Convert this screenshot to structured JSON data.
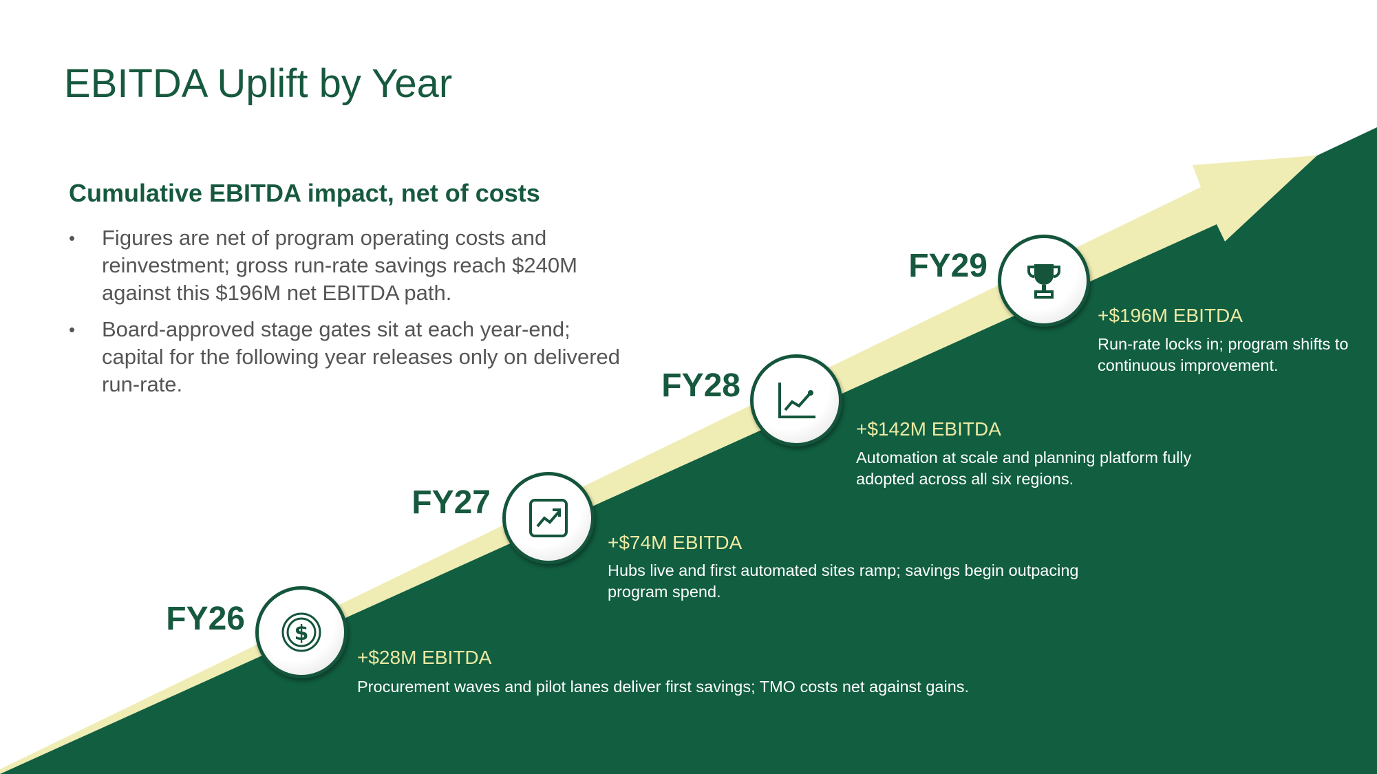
{
  "title": "EBITDA Uplift by Year",
  "subtitle": "Cumulative EBITDA impact, net of costs",
  "bullets": [
    "Figures are net of program operating costs and reinvestment; gross run-rate savings reach $240M against this $196M net EBITDA path.",
    "Board-approved stage gates sit at each year-end; capital for the following year releases only on delivered run-rate."
  ],
  "milestones": [
    {
      "year": "FY26",
      "amount": "+$28M EBITDA",
      "description": "Procurement waves and pilot lanes deliver first savings; TMO costs net against gains."
    },
    {
      "year": "FY27",
      "amount": "+$74M EBITDA",
      "description": "Hubs live and first automated sites ramp; savings begin outpacing program spend."
    },
    {
      "year": "FY28",
      "amount": "+$142M EBITDA",
      "description": "Automation at scale and planning platform fully adopted across all six regions."
    },
    {
      "year": "FY29",
      "amount": "+$196M EBITDA",
      "description": "Run-rate locks in; program shifts to continuous improvement."
    }
  ]
}
